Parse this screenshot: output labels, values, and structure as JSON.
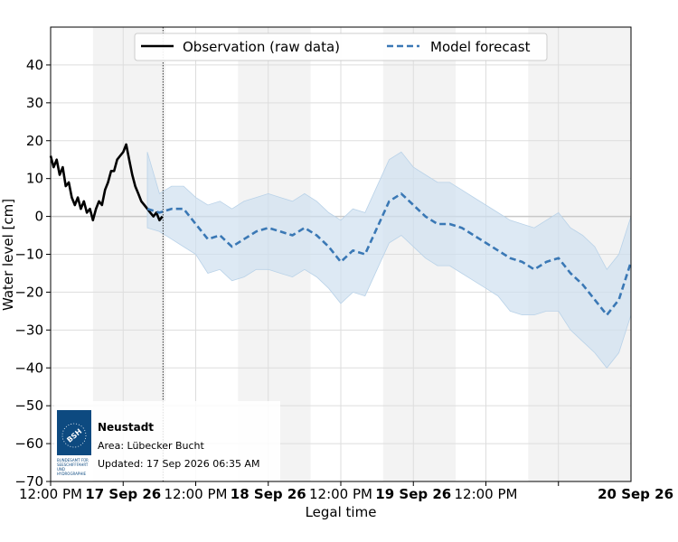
{
  "chart_data": {
    "type": "line",
    "title": "",
    "xlabel": "Legal time",
    "ylabel": "Water level [cm]",
    "ylim": [
      -70,
      50
    ],
    "y_ticks": [
      -70,
      -60,
      -50,
      -40,
      -30,
      -20,
      -10,
      0,
      10,
      20,
      30,
      40
    ],
    "x_start": "2026-09-16 12:00",
    "x_end": "2026-09-20 12:00",
    "x_ticks": [
      {
        "t": "2026-09-16 12:00",
        "label": "12:00 PM",
        "bold": false
      },
      {
        "t": "2026-09-17 00:00",
        "label": "17 Sep 26",
        "bold": true
      },
      {
        "t": "2026-09-17 12:00",
        "label": "12:00 PM",
        "bold": false
      },
      {
        "t": "2026-09-18 00:00",
        "label": "18 Sep 26",
        "bold": true
      },
      {
        "t": "2026-09-18 12:00",
        "label": "12:00 PM",
        "bold": false
      },
      {
        "t": "2026-09-19 00:00",
        "label": "19 Sep 26",
        "bold": true
      },
      {
        "t": "2026-09-19 12:00",
        "label": "12:00 PM",
        "bold": false
      },
      {
        "t": "2026-09-20 00:00",
        "label": "20 Sep 26",
        "bold": true
      }
    ],
    "grid": true,
    "legend_position": "top-center",
    "night_shading": [
      {
        "start": "2026-09-16 19:00",
        "end": "2026-09-17 07:00"
      },
      {
        "start": "2026-09-17 19:00",
        "end": "2026-09-18 07:00"
      },
      {
        "start": "2026-09-18 19:00",
        "end": "2026-09-19 07:00"
      },
      {
        "start": "2026-09-19 19:00",
        "end": "2026-09-20 12:00"
      }
    ],
    "now_marker": "2026-09-17 06:35",
    "series": [
      {
        "name": "Observation (raw data)",
        "style": "solid",
        "color": "#000000",
        "x": [
          "2026-09-16 12:00",
          "2026-09-16 12:30",
          "2026-09-16 13:00",
          "2026-09-16 13:30",
          "2026-09-16 14:00",
          "2026-09-16 14:30",
          "2026-09-16 15:00",
          "2026-09-16 15:30",
          "2026-09-16 16:00",
          "2026-09-16 16:30",
          "2026-09-16 17:00",
          "2026-09-16 17:30",
          "2026-09-16 18:00",
          "2026-09-16 18:30",
          "2026-09-16 19:00",
          "2026-09-16 19:30",
          "2026-09-16 20:00",
          "2026-09-16 20:30",
          "2026-09-16 21:00",
          "2026-09-16 21:30",
          "2026-09-16 22:00",
          "2026-09-16 22:30",
          "2026-09-16 23:00",
          "2026-09-16 23:30",
          "2026-09-17 00:00",
          "2026-09-17 00:30",
          "2026-09-17 01:00",
          "2026-09-17 01:30",
          "2026-09-17 02:00",
          "2026-09-17 02:30",
          "2026-09-17 03:00",
          "2026-09-17 03:30",
          "2026-09-17 04:00",
          "2026-09-17 04:30",
          "2026-09-17 05:00",
          "2026-09-17 05:30",
          "2026-09-17 06:00",
          "2026-09-17 06:30"
        ],
        "y": [
          16,
          13,
          15,
          11,
          13,
          8,
          9,
          5,
          3,
          5,
          2,
          4,
          1,
          2,
          -1,
          2,
          4,
          3,
          7,
          9,
          12,
          12,
          15,
          16,
          17,
          19,
          15,
          11,
          8,
          6,
          4,
          3,
          2,
          1,
          0,
          1,
          -1,
          0
        ]
      },
      {
        "name": "Model forecast",
        "style": "dashed",
        "color": "#3a78b5",
        "x": [
          "2026-09-17 04:00",
          "2026-09-17 06:00",
          "2026-09-17 08:00",
          "2026-09-17 10:00",
          "2026-09-17 12:00",
          "2026-09-17 14:00",
          "2026-09-17 16:00",
          "2026-09-17 18:00",
          "2026-09-17 20:00",
          "2026-09-17 22:00",
          "2026-09-18 00:00",
          "2026-09-18 02:00",
          "2026-09-18 04:00",
          "2026-09-18 06:00",
          "2026-09-18 08:00",
          "2026-09-18 10:00",
          "2026-09-18 12:00",
          "2026-09-18 14:00",
          "2026-09-18 16:00",
          "2026-09-18 18:00",
          "2026-09-18 20:00",
          "2026-09-18 22:00",
          "2026-09-19 00:00",
          "2026-09-19 02:00",
          "2026-09-19 04:00",
          "2026-09-19 06:00",
          "2026-09-19 08:00",
          "2026-09-19 10:00",
          "2026-09-19 12:00",
          "2026-09-19 14:00",
          "2026-09-19 16:00",
          "2026-09-19 18:00",
          "2026-09-19 20:00",
          "2026-09-19 22:00",
          "2026-09-20 00:00",
          "2026-09-20 02:00",
          "2026-09-20 04:00",
          "2026-09-20 06:00",
          "2026-09-20 08:00",
          "2026-09-20 10:00",
          "2026-09-20 12:00"
        ],
        "y": [
          2,
          1,
          2,
          2,
          -2,
          -6,
          -5,
          -8,
          -6,
          -4,
          -3,
          -4,
          -5,
          -3,
          -5,
          -8,
          -12,
          -9,
          -10,
          -3,
          4,
          6,
          3,
          0,
          -2,
          -2,
          -3,
          -5,
          -7,
          -9,
          -11,
          -12,
          -14,
          -12,
          -11,
          -15,
          -18,
          -22,
          -26,
          -22,
          -12
        ],
        "band_lower": [
          -3,
          -4,
          -6,
          -8,
          -10,
          -15,
          -14,
          -17,
          -16,
          -14,
          -14,
          -15,
          -16,
          -14,
          -16,
          -19,
          -23,
          -20,
          -21,
          -14,
          -7,
          -5,
          -8,
          -11,
          -13,
          -13,
          -15,
          -17,
          -19,
          -21,
          -25,
          -26,
          -26,
          -25,
          -25,
          -30,
          -33,
          -36,
          -40,
          -36,
          -26
        ],
        "band_upper": [
          17,
          6,
          8,
          8,
          5,
          3,
          4,
          2,
          4,
          5,
          6,
          5,
          4,
          6,
          4,
          1,
          -1,
          2,
          1,
          8,
          15,
          17,
          13,
          11,
          9,
          9,
          7,
          5,
          3,
          1,
          -1,
          -2,
          -3,
          -1,
          1,
          -3,
          -5,
          -8,
          -14,
          -10,
          0
        ],
        "band_color": "#cfe0ef"
      }
    ]
  },
  "legend": {
    "items": [
      {
        "label": "Observation (raw data)",
        "style": "solid",
        "color": "#000000"
      },
      {
        "label": "Model forecast",
        "style": "dashed",
        "color": "#3a78b5"
      }
    ]
  },
  "info_box": {
    "station": "Neustadt",
    "area": "Area: Lübecker Bucht",
    "updated": "Updated: 17 Sep 2026 06:35 AM",
    "logo": {
      "icon": "bsh-logo",
      "mark": "BSH",
      "caption": [
        "BUNDESAMT FÜR",
        "SEESCHIFFFAHRT",
        "UND",
        "HYDROGRAPHIE"
      ]
    }
  }
}
